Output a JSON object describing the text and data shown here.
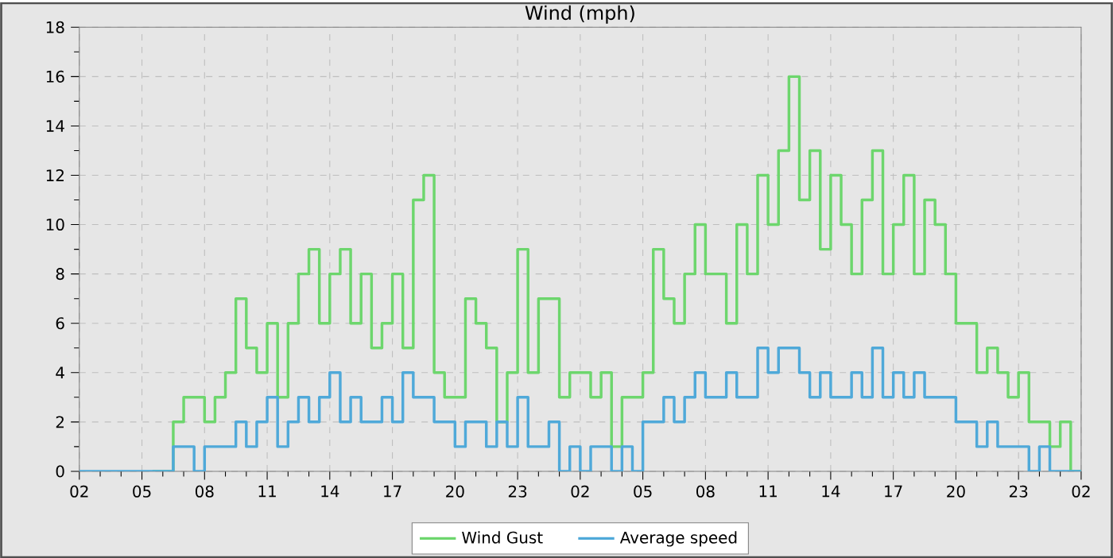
{
  "chart_data": {
    "type": "step",
    "title": "Wind (mph)",
    "x": [
      "--01-01T02:00",
      "--01-01T02:30",
      "--01-01T03:00",
      "--01-01T03:30",
      "--01-01T04:00",
      "--01-01T04:30",
      "--01-01T05:00",
      "--01-01T05:30",
      "--01-01T06:00",
      "--01-01T06:30",
      "--01-01T07:00",
      "--01-01T07:30",
      "--01-01T08:00",
      "--01-01T08:30",
      "--01-01T09:00",
      "--01-01T09:30",
      "--01-01T10:00",
      "--01-01T10:30",
      "--01-01T11:00",
      "--01-01T11:30",
      "--01-01T12:00",
      "--01-01T12:30",
      "--01-01T13:00",
      "--01-01T13:30",
      "--01-01T14:00",
      "--01-01T14:30",
      "--01-01T15:00",
      "--01-01T15:30",
      "--01-01T16:00",
      "--01-01T16:30",
      "--01-01T17:00",
      "--01-01T17:30",
      "--01-01T18:00",
      "--01-01T18:30",
      "--01-01T19:00",
      "--01-01T19:30",
      "--01-01T20:00",
      "--01-01T20:30",
      "--01-01T21:00",
      "--01-01T21:30",
      "--01-01T22:00",
      "--01-01T22:30",
      "--01-01T23:00",
      "--01-01T23:30",
      "--01-02T00:00",
      "--01-02T00:30",
      "--01-02T01:00",
      "--01-02T01:30",
      "--01-02T02:00",
      "--01-02T02:30",
      "--01-02T03:00",
      "--01-02T03:30",
      "--01-02T04:00",
      "--01-02T04:30",
      "--01-02T05:00",
      "--01-02T05:30",
      "--01-02T06:00",
      "--01-02T06:30",
      "--01-02T07:00",
      "--01-02T07:30",
      "--01-02T08:00",
      "--01-02T08:30",
      "--01-02T09:00",
      "--01-02T09:30",
      "--01-02T10:00",
      "--01-02T10:30",
      "--01-02T11:00",
      "--01-02T11:30",
      "--01-02T12:00",
      "--01-02T12:30",
      "--01-02T13:00",
      "--01-02T13:30",
      "--01-02T14:00",
      "--01-02T14:30",
      "--01-02T15:00",
      "--01-02T15:30",
      "--01-02T16:00",
      "--01-02T16:30",
      "--01-02T17:00",
      "--01-02T17:30",
      "--01-02T18:00",
      "--01-02T18:30",
      "--01-02T19:00",
      "--01-02T19:30",
      "--01-02T20:00",
      "--01-02T20:30",
      "--01-02T21:00",
      "--01-02T21:30",
      "--01-02T22:00",
      "--01-02T22:30",
      "--01-02T23:00",
      "--01-02T23:30",
      "--01-03T00:00",
      "--01-03T00:30",
      "--01-03T01:00",
      "--01-03T01:30",
      "--01-03T02:00"
    ],
    "series": [
      {
        "name": "Wind Gust",
        "color": "#6dd66d",
        "values": [
          null,
          null,
          null,
          null,
          null,
          null,
          null,
          0,
          0,
          2,
          3,
          3,
          2,
          3,
          4,
          7,
          5,
          4,
          6,
          3,
          6,
          8,
          9,
          6,
          8,
          9,
          6,
          8,
          5,
          6,
          8,
          5,
          11,
          12,
          4,
          3,
          3,
          7,
          6,
          5,
          2,
          4,
          9,
          4,
          7,
          7,
          3,
          4,
          4,
          3,
          4,
          1,
          3,
          3,
          4,
          9,
          7,
          6,
          8,
          10,
          8,
          8,
          6,
          10,
          8,
          12,
          10,
          13,
          16,
          11,
          13,
          9,
          12,
          10,
          8,
          11,
          13,
          8,
          10,
          12,
          8,
          11,
          10,
          8,
          6,
          6,
          4,
          5,
          4,
          3,
          4,
          2,
          2,
          1,
          2,
          0,
          0
        ]
      },
      {
        "name": "Average speed",
        "color": "#4fa9d9",
        "values": [
          0,
          0,
          0,
          0,
          0,
          0,
          0,
          0,
          0,
          1,
          1,
          0,
          1,
          1,
          1,
          2,
          1,
          2,
          3,
          1,
          2,
          3,
          2,
          3,
          4,
          2,
          3,
          2,
          2,
          3,
          2,
          4,
          3,
          3,
          2,
          2,
          1,
          2,
          2,
          1,
          2,
          1,
          3,
          1,
          1,
          2,
          0,
          1,
          0,
          1,
          1,
          0,
          1,
          0,
          2,
          2,
          3,
          2,
          3,
          4,
          3,
          3,
          4,
          3,
          3,
          5,
          4,
          5,
          5,
          4,
          3,
          4,
          3,
          3,
          4,
          3,
          5,
          3,
          4,
          3,
          4,
          3,
          3,
          3,
          2,
          2,
          1,
          2,
          1,
          1,
          1,
          0,
          1,
          0,
          0,
          0,
          0
        ]
      }
    ],
    "xlim": [
      "--01-01T02:00",
      "--01-03T02:00"
    ],
    "xticks": [
      {
        "value": "--01-01T02:00",
        "label": "02"
      },
      {
        "value": "--01-01T05:00",
        "label": "05"
      },
      {
        "value": "--01-01T08:00",
        "label": "08"
      },
      {
        "value": "--01-01T11:00",
        "label": "11"
      },
      {
        "value": "--01-01T14:00",
        "label": "14"
      },
      {
        "value": "--01-01T17:00",
        "label": "17"
      },
      {
        "value": "--01-01T20:00",
        "label": "20"
      },
      {
        "value": "--01-01T23:00",
        "label": "23"
      },
      {
        "value": "--01-02T02:00",
        "label": "02"
      },
      {
        "value": "--01-02T05:00",
        "label": "05"
      },
      {
        "value": "--01-02T08:00",
        "label": "08"
      },
      {
        "value": "--01-02T11:00",
        "label": "11"
      },
      {
        "value": "--01-02T14:00",
        "label": "14"
      },
      {
        "value": "--01-02T17:00",
        "label": "17"
      },
      {
        "value": "--01-02T20:00",
        "label": "20"
      },
      {
        "value": "--01-02T23:00",
        "label": "23"
      },
      {
        "value": "--01-03T02:00",
        "label": "02"
      }
    ],
    "ylim": [
      0,
      18
    ],
    "yticks": [
      0,
      2,
      4,
      6,
      8,
      10,
      12,
      14,
      16,
      18
    ],
    "grid": true,
    "legend": "bottom"
  }
}
